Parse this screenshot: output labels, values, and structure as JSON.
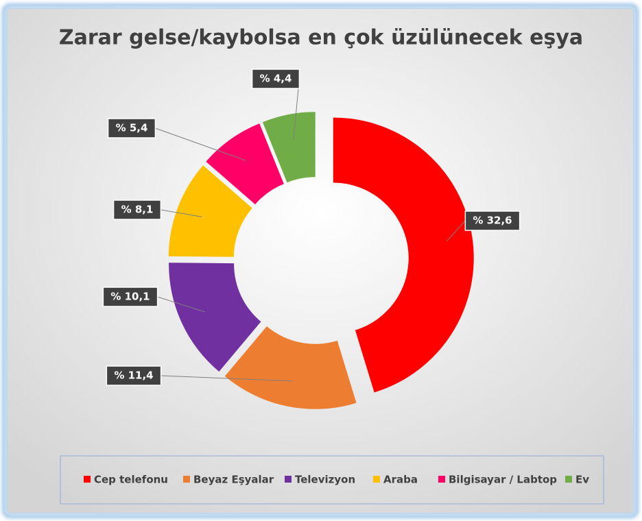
{
  "chart_data": {
    "type": "donut",
    "title": "Zarar gelse/kaybolsa en çok üzülünecek eşya",
    "categories": [
      "Cep telefonu",
      "Beyaz Eşyalar",
      "Televizyon",
      "Araba",
      "Bilgisayar / Labtop",
      "Ev"
    ],
    "values": [
      32.6,
      11.4,
      10.1,
      8.1,
      5.4,
      4.4
    ],
    "value_labels": [
      "% 32,6",
      "% 11,4",
      "% 10,1",
      "% 8,1",
      "% 5,4",
      "% 4,4"
    ],
    "colors": [
      "#ff0000",
      "#ed7d31",
      "#7030a0",
      "#ffc000",
      "#ff0066",
      "#70ad47"
    ],
    "legend": "bottom"
  }
}
